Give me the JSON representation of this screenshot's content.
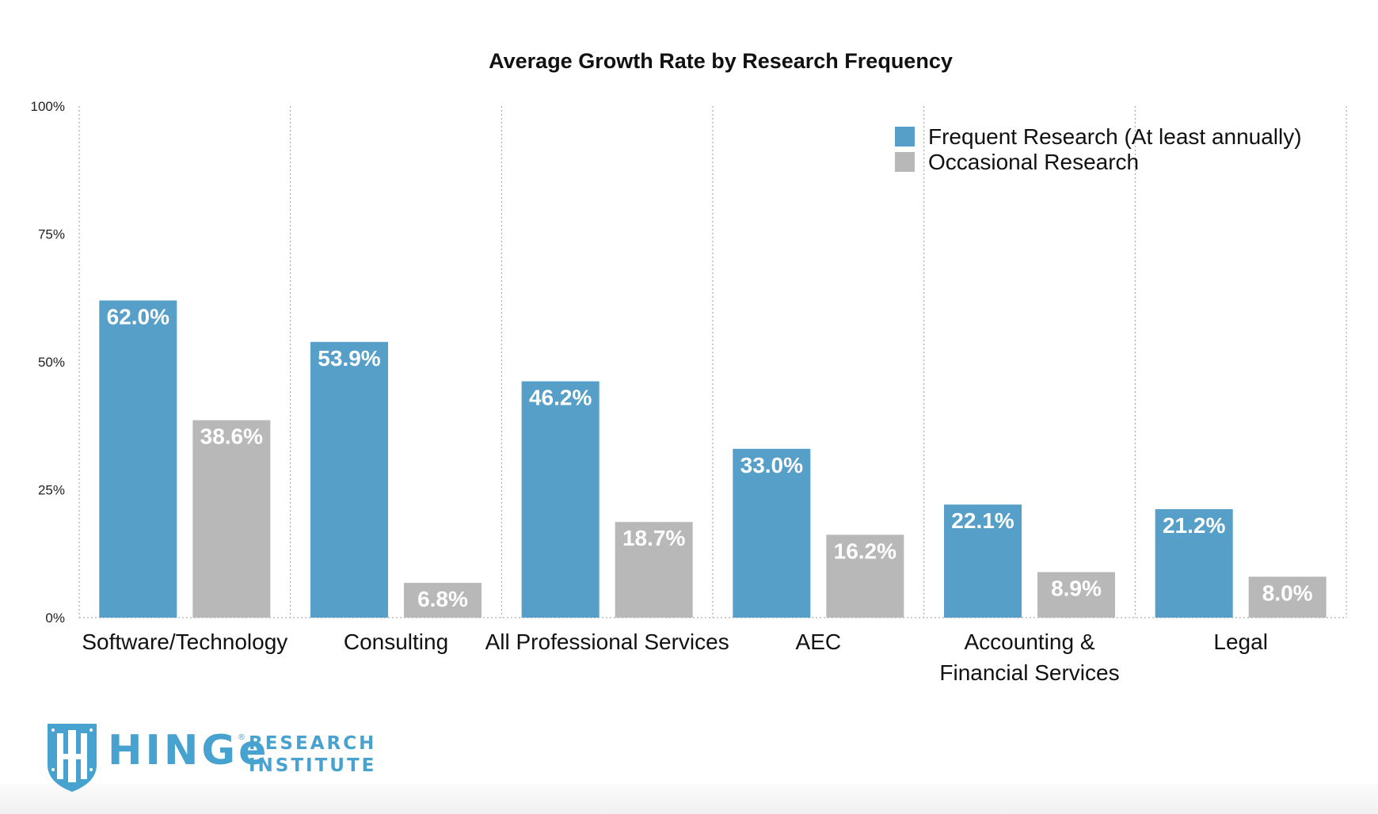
{
  "chart_data": {
    "type": "bar",
    "title": "Average Growth Rate by Research Frequency",
    "xlabel": "",
    "ylabel": "",
    "ylim": [
      0,
      100
    ],
    "yticks": [
      0,
      25,
      50,
      75,
      100
    ],
    "ytick_labels": [
      "0%",
      "25%",
      "50%",
      "75%",
      "100%"
    ],
    "grid": "vertical dotted separators",
    "legend_position": "top-right",
    "categories": [
      [
        "Software/Technology"
      ],
      [
        "Consulting"
      ],
      [
        "All Professional Services"
      ],
      [
        "AEC"
      ],
      [
        "Accounting &",
        "Financial Services"
      ],
      [
        "Legal"
      ]
    ],
    "series": [
      {
        "name": "Frequent Research (At least annually)",
        "color": "#559fc8",
        "values": [
          62.0,
          53.9,
          46.2,
          33.0,
          22.1,
          21.2
        ],
        "labels": [
          "62.0%",
          "53.9%",
          "46.2%",
          "33.0%",
          "22.1%",
          "21.2%"
        ]
      },
      {
        "name": "Occasional Research",
        "color": "#b8b8b8",
        "values": [
          38.6,
          6.8,
          18.7,
          16.2,
          8.9,
          8.0
        ],
        "labels": [
          "38.6%",
          "6.8%",
          "18.7%",
          "16.2%",
          "8.9%",
          "8.0%"
        ]
      }
    ]
  },
  "logo": {
    "wordmark": "HINGe",
    "reg_mark": "®",
    "line1": "RESEARCH",
    "line2": "INSTITUTE",
    "color": "#47a2cf"
  }
}
